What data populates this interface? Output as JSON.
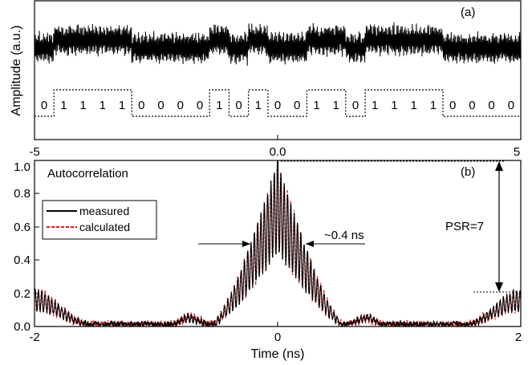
{
  "chart_data": [
    {
      "type": "line",
      "panel_label": "(a)",
      "ylabel": "Amplitude (a.u.)",
      "xlim": [
        -5,
        5
      ],
      "x_ticks": [
        "-5",
        "0.0",
        "5"
      ],
      "bits": [
        "0",
        "1",
        "1",
        "1",
        "1",
        "0",
        "0",
        "0",
        "0",
        "1",
        "0",
        "1",
        "0",
        "0",
        "1",
        "1",
        "0",
        "1",
        "1",
        "1",
        "1",
        "0",
        "0",
        "0",
        "0"
      ],
      "bit_levels": [
        0,
        1,
        1,
        1,
        1,
        0,
        0,
        0,
        0,
        1,
        0,
        1,
        0,
        0,
        1,
        1,
        0,
        1,
        1,
        1,
        1,
        0,
        0,
        0,
        0
      ],
      "series": [
        {
          "name": "waveform",
          "color": "#000000"
        },
        {
          "name": "bit sequence",
          "color": "#000000",
          "style": "dotted"
        }
      ]
    },
    {
      "type": "line",
      "panel_label": "(b)",
      "title": "Autocorrelation",
      "xlabel": "Time (ns)",
      "xlim": [
        -2,
        2
      ],
      "ylim": [
        0,
        1.0
      ],
      "x_ticks": [
        "-2",
        "0",
        "2"
      ],
      "y_ticks": [
        "0.0",
        "0.2",
        "0.4",
        "0.6",
        "0.8",
        "1.0"
      ],
      "series": [
        {
          "name": "measured",
          "color": "#000000",
          "style": "solid",
          "envelope": {
            "peak": 1.0,
            "half_width_ns": 0.4,
            "edge_value_at_2ns": 0.21,
            "sidelobe_at_0_7ns": 0.07
          }
        },
        {
          "name": "calculated",
          "color": "#e8151b",
          "style": "dashed"
        }
      ],
      "annotations": [
        {
          "text": "~0.4 ns",
          "x_range": [
            -0.2,
            0.2
          ],
          "y": 0.48
        },
        {
          "text": "PSR=7",
          "from": 0.21,
          "to": 1.0
        }
      ]
    }
  ]
}
